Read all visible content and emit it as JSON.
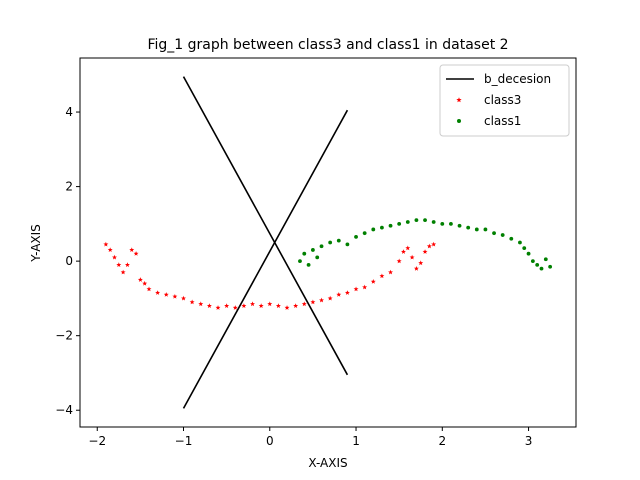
{
  "chart_data": {
    "type": "scatter",
    "title": "Fig_1 graph between class3 and class1 in dataset 2",
    "xlabel": "X-AXIS",
    "ylabel": "Y-AXIS",
    "xlim": [
      -2.2,
      3.55
    ],
    "ylim": [
      -4.45,
      5.45
    ],
    "xticks": [
      -2,
      -1,
      0,
      1,
      2,
      3
    ],
    "xtick_labels": [
      "−2",
      "−1",
      "0",
      "1",
      "2",
      "3"
    ],
    "yticks": [
      -4,
      -2,
      0,
      2,
      4
    ],
    "ytick_labels": [
      "−4",
      "−2",
      "0",
      "2",
      "4"
    ],
    "grid": false,
    "legend_position": "top-right",
    "lines": [
      {
        "name": "b_decesion",
        "color": "#000000",
        "x": [
          -1.0,
          0.9
        ],
        "y": [
          4.95,
          -3.05
        ]
      },
      {
        "name": "",
        "color": "#000000",
        "x": [
          -1.0,
          0.9
        ],
        "y": [
          -3.95,
          4.05
        ]
      }
    ],
    "series": [
      {
        "name": "class3",
        "color": "#ff0000",
        "marker": "star",
        "x": [
          -1.9,
          -1.85,
          -1.8,
          -1.75,
          -1.7,
          -1.65,
          -1.6,
          -1.55,
          -1.5,
          -1.45,
          -1.4,
          -1.3,
          -1.2,
          -1.1,
          -1.0,
          -0.9,
          -0.8,
          -0.7,
          -0.6,
          -0.5,
          -0.4,
          -0.3,
          -0.2,
          -0.1,
          0.0,
          0.1,
          0.2,
          0.3,
          0.4,
          0.5,
          0.6,
          0.7,
          0.8,
          0.9,
          1.0,
          1.1,
          1.2,
          1.3,
          1.4,
          1.5,
          1.55,
          1.6,
          1.65,
          1.7,
          1.75,
          1.8,
          1.85,
          1.9
        ],
        "y": [
          0.45,
          0.3,
          0.1,
          -0.1,
          -0.3,
          -0.1,
          0.3,
          0.2,
          -0.5,
          -0.6,
          -0.75,
          -0.85,
          -0.9,
          -0.95,
          -1.0,
          -1.1,
          -1.15,
          -1.2,
          -1.25,
          -1.2,
          -1.25,
          -1.2,
          -1.15,
          -1.2,
          -1.15,
          -1.2,
          -1.25,
          -1.2,
          -1.15,
          -1.1,
          -1.05,
          -1.0,
          -0.9,
          -0.85,
          -0.75,
          -0.7,
          -0.55,
          -0.4,
          -0.3,
          0.0,
          0.25,
          0.35,
          0.1,
          -0.2,
          -0.05,
          0.25,
          0.4,
          0.45
        ]
      },
      {
        "name": "class1",
        "color": "#008000",
        "marker": "dot",
        "x": [
          0.35,
          0.4,
          0.45,
          0.5,
          0.55,
          0.6,
          0.7,
          0.8,
          0.9,
          1.0,
          1.1,
          1.2,
          1.3,
          1.4,
          1.5,
          1.6,
          1.7,
          1.8,
          1.9,
          2.0,
          2.1,
          2.2,
          2.3,
          2.4,
          2.5,
          2.6,
          2.7,
          2.8,
          2.9,
          2.95,
          3.0,
          3.05,
          3.1,
          3.15,
          3.2,
          3.25
        ],
        "y": [
          0.0,
          0.2,
          -0.1,
          0.3,
          0.1,
          0.4,
          0.5,
          0.55,
          0.45,
          0.65,
          0.75,
          0.85,
          0.9,
          0.95,
          1.0,
          1.05,
          1.1,
          1.1,
          1.05,
          1.0,
          1.0,
          0.95,
          0.9,
          0.85,
          0.85,
          0.75,
          0.7,
          0.6,
          0.5,
          0.35,
          0.2,
          0.0,
          -0.1,
          -0.2,
          0.05,
          -0.15
        ]
      }
    ]
  }
}
